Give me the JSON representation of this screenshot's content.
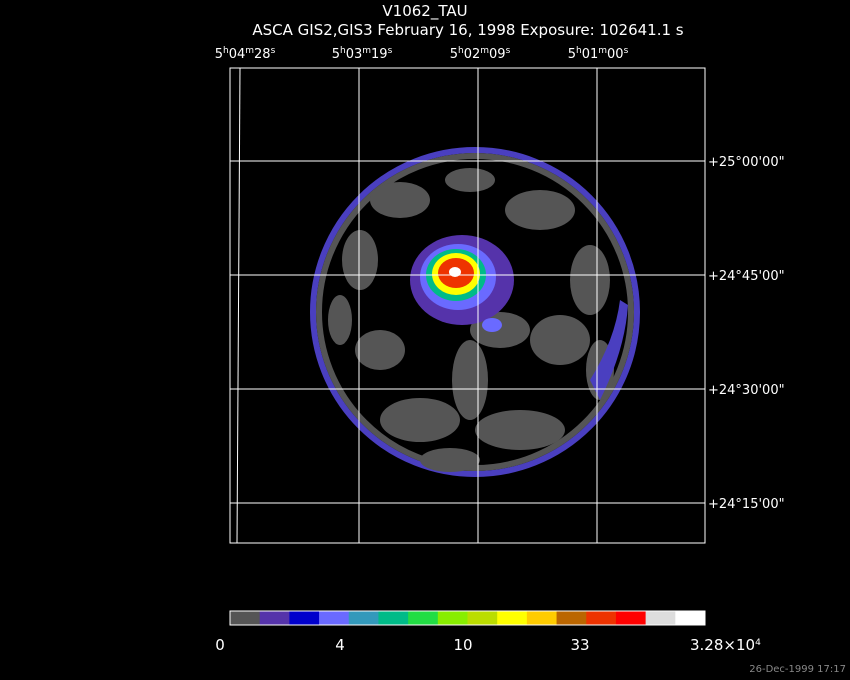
{
  "header": {
    "title": "V1062_TAU",
    "subtitle": "ASCA GIS2,GIS3 February 16, 1998 Exposure: 102641.1 s"
  },
  "ra_labels": [
    [
      "5",
      "h",
      "04",
      "m",
      "28",
      "s"
    ],
    [
      "5",
      "h",
      "03",
      "m",
      "19",
      "s"
    ],
    [
      "5",
      "h",
      "02",
      "m",
      "09",
      "s"
    ],
    [
      "5",
      "h",
      "01",
      "m",
      "00",
      "s"
    ]
  ],
  "dec_labels": [
    "+25°00'00\"",
    "+24°45'00\"",
    "+24°30'00\"",
    "+24°15'00\""
  ],
  "colorbar": {
    "colors": [
      "#555555",
      "#5533aa",
      "#0000cc",
      "#6a6aff",
      "#3399bb",
      "#00bb88",
      "#22dd44",
      "#88ee00",
      "#bbdd00",
      "#ffff00",
      "#ffcc00",
      "#bb6600",
      "#ee3300",
      "#ff0000",
      "#dddddd",
      "#ffffff"
    ],
    "labels": [
      [
        "0"
      ],
      [
        "4"
      ],
      [
        "10"
      ],
      [
        "33"
      ],
      [
        "3.28×10",
        "4"
      ]
    ]
  },
  "timestamp": "26-Dec-1999 17:17"
}
